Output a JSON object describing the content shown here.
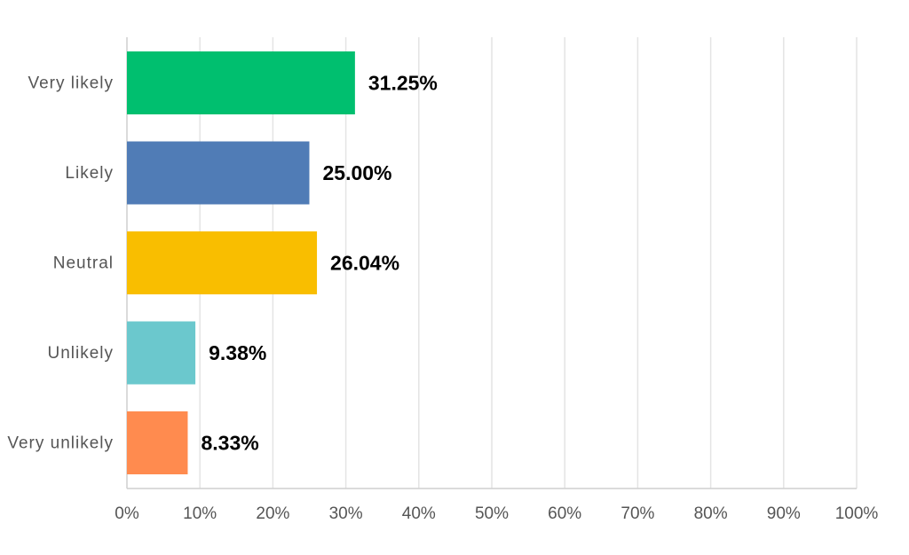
{
  "chart_data": {
    "type": "bar",
    "orientation": "horizontal",
    "categories": [
      "Very likely",
      "Likely",
      "Neutral",
      "Unlikely",
      "Very unlikely"
    ],
    "values": [
      31.25,
      25.0,
      26.04,
      9.38,
      8.33
    ],
    "value_labels": [
      "31.25%",
      "25.00%",
      "26.04%",
      "9.38%",
      "8.33%"
    ],
    "colors": [
      "#00bf6f",
      "#507cb6",
      "#f9be00",
      "#6bc8cd",
      "#ff8b4f"
    ],
    "xlim": [
      0,
      100
    ],
    "x_ticks": [
      "0%",
      "10%",
      "20%",
      "30%",
      "40%",
      "50%",
      "60%",
      "70%",
      "80%",
      "90%",
      "100%"
    ],
    "grid": true,
    "title": "",
    "xlabel": "",
    "ylabel": ""
  }
}
